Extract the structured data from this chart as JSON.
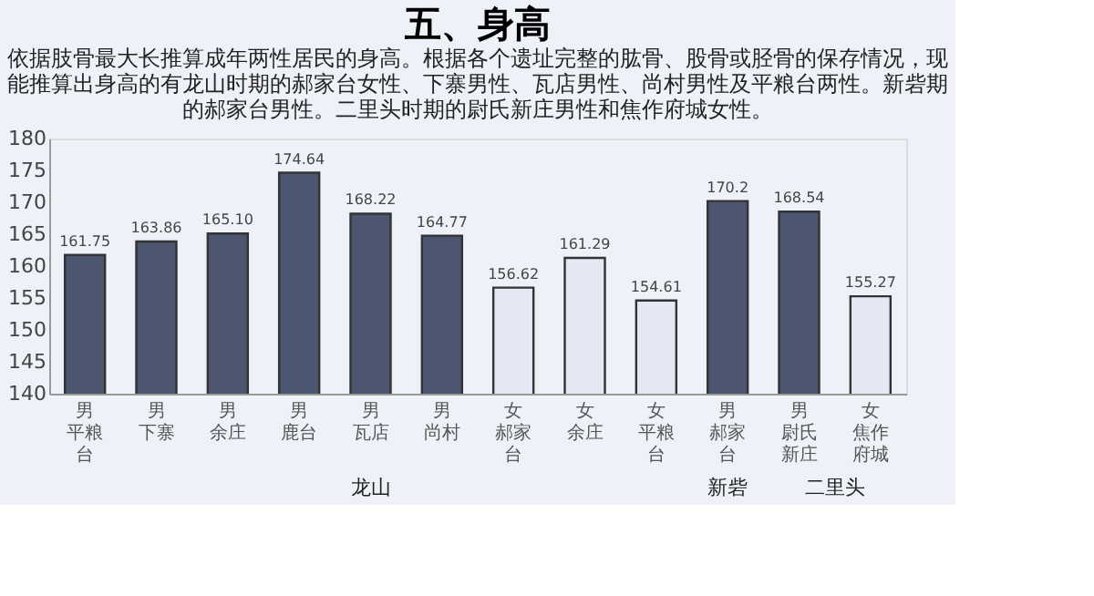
{
  "chart_data": {
    "type": "bar",
    "title": "五、身高",
    "subtitle": "依据肢骨最大长推算成年两性居民的身高。根据各个遗址完整的肱骨、股骨或胫骨的保存情况，现能推算出身高的有龙山时期的郝家台女性、下寨男性、瓦店男性、尚村男性及平粮台两性。新砦期的郝家台男性。二里头时期的尉氏新庄男性和焦作府城女性。",
    "categories": [
      "男平粮台",
      "男下寨",
      "男余庄",
      "男鹿台",
      "男瓦店",
      "男尚村",
      "女郝家台",
      "女余庄",
      "女平粮台",
      "男郝家台",
      "男尉氏新庄",
      "女焦作府城"
    ],
    "values": [
      161.75,
      163.86,
      165.1,
      174.64,
      168.22,
      164.77,
      156.62,
      161.29,
      154.61,
      170.2,
      168.54,
      155.27
    ],
    "value_labels": [
      "161.75",
      "163.86",
      "165.10",
      "174.64",
      "168.22",
      "164.77",
      "156.62",
      "161.29",
      "154.61",
      "170.2",
      "168.54",
      "155.27"
    ],
    "colors": [
      "#4d5670",
      "#4d5670",
      "#4d5670",
      "#4d5670",
      "#4d5670",
      "#4d5670",
      "#e4e8f2",
      "#e4e8f2",
      "#e4e8f2",
      "#4d5670",
      "#4d5670",
      "#e4e8f2"
    ],
    "ylim": [
      140,
      180
    ],
    "yticks": [
      140,
      145,
      150,
      155,
      160,
      165,
      170,
      175,
      180
    ],
    "grid": false,
    "annotations": [
      "龙山",
      "新砦",
      "二里头"
    ]
  }
}
